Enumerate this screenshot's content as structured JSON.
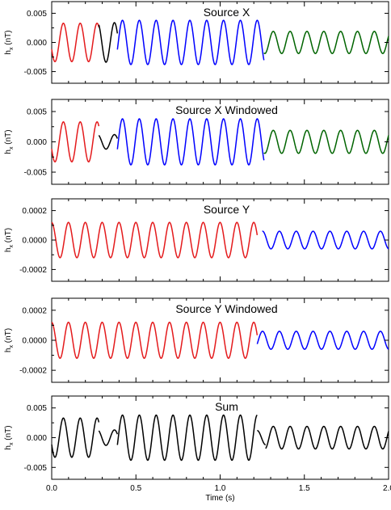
{
  "chart_data": [
    {
      "type": "line",
      "title": "Source X",
      "ylabel": "h",
      "ylabel_sub": "x",
      "ylabel_unit": " (nT)",
      "xlim": [
        0,
        2.0
      ],
      "ylim": [
        -0.007,
        0.007
      ],
      "yticks": [
        -0.005,
        0.0,
        0.005
      ],
      "ytick_labels": [
        "-0.005",
        "0.000",
        "0.005"
      ],
      "xticks": [
        0,
        0.5,
        1.0,
        1.5,
        2.0
      ],
      "series": [
        {
          "color": "#e41a1c",
          "x_range": [
            0.0,
            0.28
          ],
          "amplitude": 0.0033,
          "frequency": 10,
          "phase": 3.5
        },
        {
          "color": "#000000",
          "x_range": [
            0.28,
            0.39
          ],
          "amplitude": 0.0034,
          "frequency": 10,
          "phase": 3.3
        },
        {
          "color": "#0000ff",
          "x_range": [
            0.39,
            1.26
          ],
          "amplitude": 0.0038,
          "frequency": 10,
          "phase": 0.3
        },
        {
          "color": "#006400",
          "x_range": [
            1.26,
            2.0
          ],
          "amplitude": 0.0019,
          "frequency": 10,
          "phase": 0.6
        }
      ]
    },
    {
      "type": "line",
      "title": "Source X Windowed",
      "ylabel": "h",
      "ylabel_sub": "x",
      "ylabel_unit": " (nT)",
      "xlim": [
        0,
        2.0
      ],
      "ylim": [
        -0.007,
        0.007
      ],
      "yticks": [
        -0.005,
        0.0,
        0.005
      ],
      "ytick_labels": [
        "-0.005",
        "0.000",
        "0.005"
      ],
      "xticks": [
        0,
        0.5,
        1.0,
        1.5,
        2.0
      ],
      "series": [
        {
          "color": "#e41a1c",
          "x_range": [
            0.0,
            0.28
          ],
          "amplitude": 0.0033,
          "frequency": 10,
          "phase": 3.5
        },
        {
          "color": "#000000",
          "x_range": [
            0.28,
            0.39
          ],
          "amplitude": 0.0012,
          "frequency": 10,
          "phase": 3.3
        },
        {
          "color": "#0000ff",
          "x_range": [
            0.39,
            1.26
          ],
          "amplitude": 0.0038,
          "frequency": 10,
          "phase": 0.3
        },
        {
          "color": "#006400",
          "x_range": [
            1.26,
            2.0
          ],
          "amplitude": 0.0019,
          "frequency": 10,
          "phase": 0.6
        }
      ]
    },
    {
      "type": "line",
      "title": "Source Y",
      "ylabel": "h",
      "ylabel_sub": "x",
      "ylabel_unit": " (nT)",
      "xlim": [
        0,
        2.0
      ],
      "ylim": [
        -0.00028,
        0.00028
      ],
      "yticks": [
        -0.0002,
        0.0,
        0.0002
      ],
      "ytick_labels": [
        "-0.0002",
        "0.0000",
        "0.0002"
      ],
      "xticks": [
        0,
        0.5,
        1.0,
        1.5,
        2.0
      ],
      "series": [
        {
          "color": "#e41a1c",
          "x_range": [
            0.0,
            1.22
          ],
          "amplitude": 0.00012,
          "frequency": 10,
          "phase": 1.6
        },
        {
          "color": "#0000ff",
          "x_range": [
            1.25,
            2.0
          ],
          "amplitude": 6e-05,
          "frequency": 10,
          "phase": 4.6
        }
      ]
    },
    {
      "type": "line",
      "title": "Source Y Windowed",
      "ylabel": "h",
      "ylabel_sub": "x",
      "ylabel_unit": " (nT)",
      "xlim": [
        0,
        2.0
      ],
      "ylim": [
        -0.00028,
        0.00028
      ],
      "yticks": [
        -0.0002,
        0.0,
        0.0002
      ],
      "ytick_labels": [
        "-0.0002",
        "0.0000",
        "0.0002"
      ],
      "xticks": [
        0,
        0.5,
        1.0,
        1.5,
        2.0
      ],
      "series": [
        {
          "color": "#e41a1c",
          "x_range": [
            0.0,
            1.22
          ],
          "amplitude": 0.00012,
          "frequency": 10,
          "phase": 1.6
        },
        {
          "color": "#0000ff",
          "x_range": [
            1.22,
            2.0
          ],
          "amplitude": 6e-05,
          "frequency": 10,
          "phase": 4.6
        }
      ]
    },
    {
      "type": "line",
      "title": "Sum",
      "ylabel": "h",
      "ylabel_sub": "x",
      "ylabel_unit": " (nT)",
      "xlabel": "Time (s)",
      "xlim": [
        0,
        2.0
      ],
      "ylim": [
        -0.007,
        0.007
      ],
      "yticks": [
        -0.005,
        0.0,
        0.005
      ],
      "ytick_labels": [
        "-0.005",
        "0.000",
        "0.005"
      ],
      "xticks": [
        0,
        0.5,
        1.0,
        1.5,
        2.0
      ],
      "xtick_labels": [
        "0.0",
        "0.5",
        "1.0",
        "1.5",
        "2.0"
      ],
      "series": [
        {
          "color": "#000000",
          "x_range": [
            0.0,
            0.28
          ],
          "amplitude": 0.0033,
          "frequency": 10,
          "phase": 3.5
        },
        {
          "color": "#000000",
          "x_range": [
            0.28,
            0.39
          ],
          "amplitude": 0.0013,
          "frequency": 10,
          "phase": 3.3
        },
        {
          "color": "#000000",
          "x_range": [
            0.39,
            1.22
          ],
          "amplitude": 0.0038,
          "frequency": 10,
          "phase": 0.3
        },
        {
          "color": "#000000",
          "x_range": [
            1.22,
            1.27
          ],
          "amplitude": 0.0012,
          "frequency": 10,
          "phase": 0.3
        },
        {
          "color": "#000000",
          "x_range": [
            1.27,
            2.0
          ],
          "amplitude": 0.0019,
          "frequency": 10,
          "phase": 0.6
        }
      ]
    }
  ]
}
